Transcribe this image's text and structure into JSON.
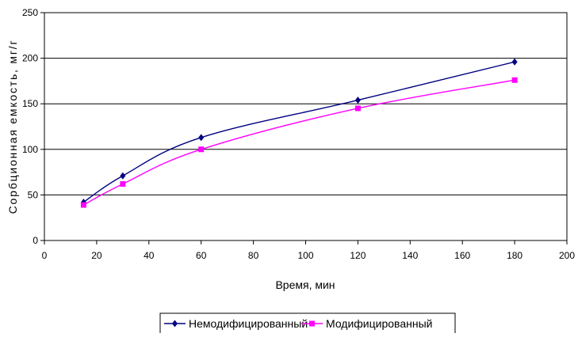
{
  "chart_data": {
    "type": "line",
    "title": "",
    "xlabel": "Время, мин",
    "ylabel": "Сорбционная емкость, мг/г",
    "xlim": [
      0,
      200
    ],
    "ylim": [
      0,
      250
    ],
    "x_ticks": [
      0,
      20,
      40,
      60,
      80,
      100,
      120,
      140,
      160,
      180,
      200
    ],
    "y_ticks": [
      0,
      50,
      100,
      150,
      200,
      250
    ],
    "grid": "horizontal",
    "legend_position": "bottom",
    "series": [
      {
        "name": "Немодифицированный",
        "color": "#000080",
        "marker": "diamond",
        "x": [
          15,
          30,
          60,
          120,
          180
        ],
        "y": [
          42,
          71,
          113,
          154,
          196
        ]
      },
      {
        "name": "Модифицированный",
        "color": "#FF00FF",
        "marker": "square",
        "x": [
          15,
          30,
          60,
          120,
          180
        ],
        "y": [
          39,
          62,
          100,
          145,
          176
        ]
      }
    ]
  }
}
